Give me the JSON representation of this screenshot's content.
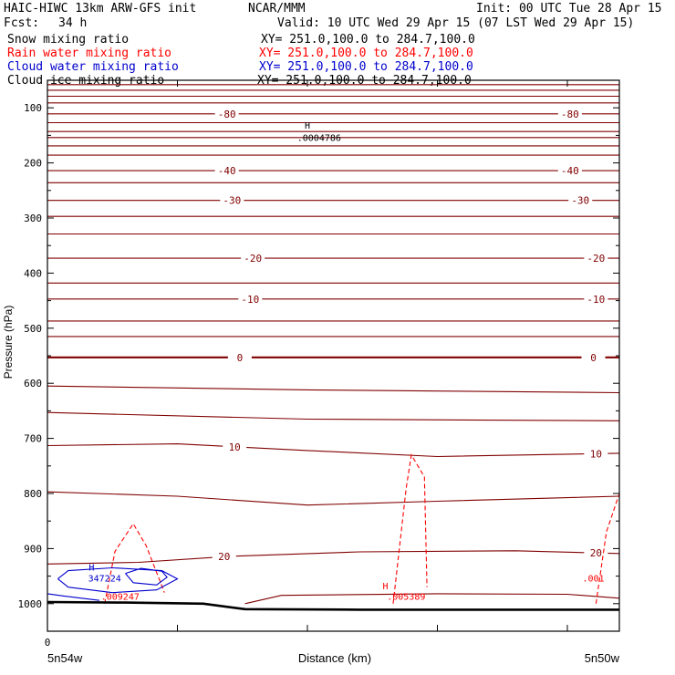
{
  "header": {
    "title": "HAIC-HIWC 13km ARW-GFS init",
    "org": "NCAR/MMM",
    "init": "Init: 00 UTC Tue 28 Apr 15",
    "fcst_label": "Fcst:",
    "fcst_value": "34 h",
    "valid": "Valid: 10 UTC Wed 29 Apr 15 (07 LST Wed 29 Apr 15)"
  },
  "legend": [
    {
      "label": "Snow mixing ratio",
      "xy": "XY= 251.0,100.0 to 284.7,100.0",
      "color": "#000000"
    },
    {
      "label": "Rain water mixing ratio",
      "xy": "XY= 251.0,100.0 to 284.7,100.0",
      "color": "#ff0000"
    },
    {
      "label": "Cloud water mixing ratio",
      "xy": "XY= 251.0,100.0 to 284.7,100.0",
      "color": "#0000cc"
    },
    {
      "label": "Cloud ice mixing ratio",
      "xy": "XY= 251.0,100.0 to 284.7,100.0",
      "color": "#000000"
    }
  ],
  "colors": {
    "temperature": "#800000",
    "rain": "#ff0000",
    "cloud_water": "#0000cc",
    "ground": "#000000"
  },
  "chart_data": {
    "type": "line",
    "title": "",
    "xlabel": "Distance (km)",
    "ylabel": "Pressure (hPa)",
    "xlim": [
      0,
      2200
    ],
    "ylim": [
      1050,
      50
    ],
    "x_ticks": [
      0,
      500,
      1000,
      1500,
      2000
    ],
    "x_tick_labels": [
      "0",
      "",
      "",
      "",
      ""
    ],
    "y_ticks": [
      100,
      200,
      300,
      400,
      500,
      600,
      700,
      800,
      900,
      1000
    ],
    "y_tick_labels": [
      "100",
      "200",
      "300",
      "400",
      "500",
      "600",
      "700",
      "800",
      "900",
      "1000"
    ],
    "x_endpoint_labels": [
      "5n54w",
      "5n50w"
    ],
    "grid": false,
    "temperature_isotherms": [
      {
        "y": 58,
        "x": [
          0,
          2200
        ],
        "label": ""
      },
      {
        "y": 68,
        "x": [
          0,
          2200
        ],
        "label": ""
      },
      {
        "y": 79,
        "x": [
          0,
          2200
        ],
        "label": ""
      },
      {
        "y": 91,
        "x": [
          0,
          2200
        ],
        "label": ""
      },
      {
        "y": 111,
        "x": [
          0,
          2200
        ],
        "label": "-80",
        "label_x": [
          690,
          2010
        ]
      },
      {
        "y": 127,
        "x": [
          0,
          2200
        ],
        "label": ""
      },
      {
        "y": 143,
        "x": [
          0,
          2200
        ],
        "label": ""
      },
      {
        "y": 154,
        "x": [
          0,
          2200
        ],
        "label": ""
      },
      {
        "y": 169,
        "x": [
          0,
          2200
        ],
        "label": ""
      },
      {
        "y": 186,
        "x": [
          0,
          2200
        ],
        "label": ""
      },
      {
        "y": 214,
        "x": [
          0,
          2200
        ],
        "label": "-40",
        "label_x": [
          690,
          2010
        ]
      },
      {
        "y": 236,
        "x": [
          0,
          2200
        ],
        "label": ""
      },
      {
        "y": 268,
        "x": [
          0,
          2200
        ],
        "label": "-30",
        "label_x": [
          710,
          2050
        ]
      },
      {
        "y": 297,
        "x": [
          0,
          2200
        ],
        "label": ""
      },
      {
        "y": 329,
        "x": [
          0,
          2200
        ],
        "label": ""
      },
      {
        "y": 373,
        "x": [
          0,
          2200
        ],
        "label": "-20",
        "label_x": [
          790,
          2110
        ]
      },
      {
        "y": 418,
        "x": [
          0,
          2200
        ],
        "label": ""
      },
      {
        "y": 447,
        "x": [
          0,
          2200
        ],
        "label": "-10",
        "label_x": [
          780,
          2110
        ]
      },
      {
        "y": 487,
        "x": [
          0,
          2200
        ],
        "label": ""
      },
      {
        "y": 515,
        "x": [
          0,
          2200
        ],
        "label": ""
      },
      {
        "y": 553,
        "x": [
          0,
          2200
        ],
        "label": "0",
        "label_x": [
          740,
          2100
        ],
        "bold": true
      },
      {
        "y": 607,
        "x": [
          0,
          1000,
          2200
        ],
        "y_pts": [
          605,
          612,
          617
        ],
        "label": ""
      },
      {
        "y": 655,
        "x": [
          0,
          1000,
          2200
        ],
        "y_pts": [
          653,
          665,
          668
        ],
        "label": ""
      },
      {
        "y": 720,
        "x": [
          0,
          500,
          1000,
          1500,
          2200
        ],
        "y_pts": [
          713,
          710,
          722,
          733,
          727
        ],
        "label": "10",
        "label_x": [
          720,
          2110
        ]
      },
      {
        "y": 810,
        "x": [
          0,
          500,
          1000,
          1500,
          2200
        ],
        "y_pts": [
          797,
          805,
          821,
          814,
          805
        ],
        "label": ""
      },
      {
        "y": 920,
        "x": [
          0,
          350,
          700,
          1200,
          1800,
          2200
        ],
        "y_pts": [
          928,
          925,
          914,
          906,
          904,
          909
        ],
        "label": "20",
        "label_x": [
          680,
          2110
        ]
      },
      {
        "y": 985,
        "x": [
          760,
          900,
          1500,
          2000,
          2200
        ],
        "y_pts": [
          1000,
          985,
          982,
          983,
          990
        ],
        "label": ""
      }
    ],
    "ground": {
      "x": [
        0,
        300,
        600,
        760,
        1200,
        1800,
        2200
      ],
      "y": [
        997,
        998,
        1000,
        1010,
        1011,
        1011,
        1011
      ]
    },
    "rain_contours": [
      {
        "x": [
          220,
          260,
          330,
          380,
          450
        ],
        "y": [
          1000,
          905,
          855,
          895,
          980
        ]
      },
      {
        "x": [
          1330,
          1380,
          1400,
          1450,
          1460
        ],
        "y": [
          1000,
          790,
          730,
          770,
          970
        ]
      },
      {
        "x": [
          2110,
          2150,
          2200
        ],
        "y": [
          1000,
          870,
          800
        ]
      }
    ],
    "cloud_water_contours": [
      {
        "x": [
          40,
          80,
          250,
          440,
          500,
          420,
          250,
          80,
          40
        ],
        "y": [
          955,
          940,
          935,
          940,
          955,
          975,
          980,
          970,
          955
        ]
      },
      {
        "x": [
          300,
          360,
          440,
          460,
          420,
          330,
          300
        ],
        "y": [
          945,
          936,
          941,
          952,
          966,
          962,
          945
        ]
      },
      {
        "x": [
          0,
          60,
          200
        ],
        "y": [
          982,
          986,
          994
        ]
      }
    ],
    "annotations": [
      {
        "text": "H",
        "x": 1000,
        "y": 138,
        "color": "#000000"
      },
      {
        "text": ".0004786",
        "x": 1045,
        "y": 160,
        "color": "#000000"
      },
      {
        "text": "H",
        "x": 170,
        "y": 940,
        "color": "#0000cc"
      },
      {
        "text": "347224",
        "x": 220,
        "y": 960,
        "color": "#0000cc"
      },
      {
        "text": ".009247",
        "x": 280,
        "y": 993,
        "color": "#ff0000"
      },
      {
        "text": "H",
        "x": 1300,
        "y": 974,
        "color": "#ff0000"
      },
      {
        "text": ".005389",
        "x": 1380,
        "y": 993,
        "color": "#ff0000"
      },
      {
        "text": ".001",
        "x": 2100,
        "y": 960,
        "color": "#ff0000"
      }
    ]
  }
}
